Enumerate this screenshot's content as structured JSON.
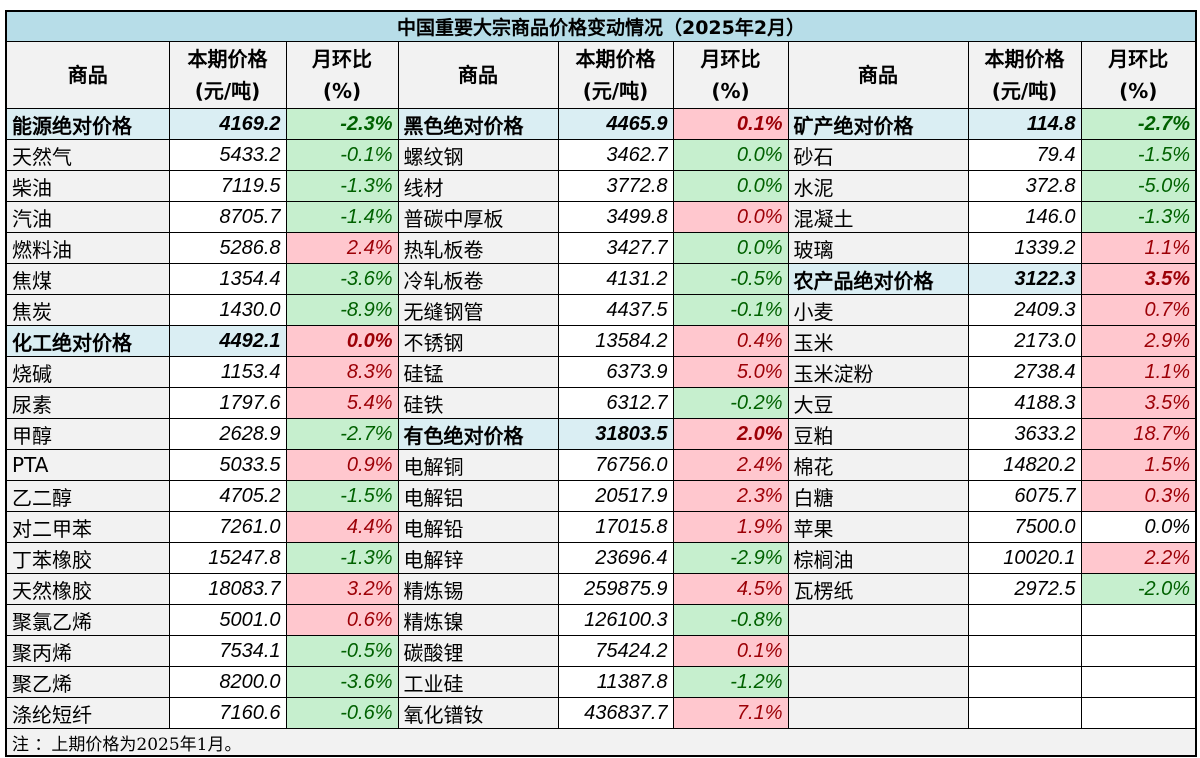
{
  "title": "中国重要大宗商品价格变动情况（2025年2月）",
  "headers": {
    "name": "商品",
    "price": "本期价格\n(元/吨)",
    "pct": "月环比\n(%)"
  },
  "colors": {
    "title_bg": "#b7dde8",
    "category_bg": "#daeef3",
    "up_bg": "#ffc7ce",
    "up_text": "#9c0006",
    "down_bg": "#c6efce",
    "down_text": "#006100"
  },
  "columns": [
    [
      [
        "能源绝对价格",
        "4169.2",
        "-2.3%",
        "g",
        true
      ],
      [
        "天然气",
        "5433.2",
        "-0.1%",
        "g"
      ],
      [
        "柴油",
        "7119.5",
        "-1.3%",
        "g"
      ],
      [
        "汽油",
        "8705.7",
        "-1.4%",
        "g"
      ],
      [
        "燃料油",
        "5286.8",
        "2.4%",
        "r"
      ],
      [
        "焦煤",
        "1354.4",
        "-3.6%",
        "g"
      ],
      [
        "焦炭",
        "1430.0",
        "-8.9%",
        "g"
      ],
      [
        "化工绝对价格",
        "4492.1",
        "0.0%",
        "r",
        true
      ],
      [
        "烧碱",
        "1153.4",
        "8.3%",
        "r"
      ],
      [
        "尿素",
        "1797.6",
        "5.4%",
        "r"
      ],
      [
        "甲醇",
        "2628.9",
        "-2.7%",
        "g"
      ],
      [
        "PTA",
        "5033.5",
        "0.9%",
        "r"
      ],
      [
        "乙二醇",
        "4705.2",
        "-1.5%",
        "g"
      ],
      [
        "对二甲苯",
        "7261.0",
        "4.4%",
        "r"
      ],
      [
        "丁苯橡胶",
        "15247.8",
        "-1.3%",
        "g"
      ],
      [
        "天然橡胶",
        "18083.7",
        "3.2%",
        "r"
      ],
      [
        "聚氯乙烯",
        "5001.0",
        "0.6%",
        "r"
      ],
      [
        "聚丙烯",
        "7534.1",
        "-0.5%",
        "g"
      ],
      [
        "聚乙烯",
        "8200.0",
        "-3.6%",
        "g"
      ],
      [
        "涤纶短纤",
        "7160.6",
        "-0.6%",
        "g"
      ]
    ],
    [
      [
        "黑色绝对价格",
        "4465.9",
        "0.1%",
        "r",
        true
      ],
      [
        "螺纹钢",
        "3462.7",
        "0.0%",
        "g"
      ],
      [
        "线材",
        "3772.8",
        "0.0%",
        "g"
      ],
      [
        "普碳中厚板",
        "3499.8",
        "0.0%",
        "r"
      ],
      [
        "热轧板卷",
        "3427.7",
        "0.0%",
        "g"
      ],
      [
        "冷轧板卷",
        "4131.2",
        "-0.5%",
        "g"
      ],
      [
        "无缝钢管",
        "4437.5",
        "-0.1%",
        "g"
      ],
      [
        "不锈钢",
        "13584.2",
        "0.4%",
        "r"
      ],
      [
        "硅锰",
        "6373.9",
        "5.0%",
        "r"
      ],
      [
        "硅铁",
        "6312.7",
        "-0.2%",
        "g"
      ],
      [
        "有色绝对价格",
        "31803.5",
        "2.0%",
        "r",
        true
      ],
      [
        "电解铜",
        "76756.0",
        "2.4%",
        "r"
      ],
      [
        "电解铝",
        "20517.9",
        "2.3%",
        "r"
      ],
      [
        "电解铅",
        "17015.8",
        "1.9%",
        "r"
      ],
      [
        "电解锌",
        "23696.4",
        "-2.9%",
        "g"
      ],
      [
        "精炼锡",
        "259875.9",
        "4.5%",
        "r"
      ],
      [
        "精炼镍",
        "126100.3",
        "-0.8%",
        "g"
      ],
      [
        "碳酸锂",
        "75424.2",
        "0.1%",
        "r"
      ],
      [
        "工业硅",
        "11387.8",
        "-1.2%",
        "g"
      ],
      [
        "氧化镨钕",
        "436837.7",
        "7.1%",
        "r"
      ]
    ],
    [
      [
        "矿产绝对价格",
        "114.8",
        "-2.7%",
        "g",
        true
      ],
      [
        "砂石",
        "79.4",
        "-1.5%",
        "g"
      ],
      [
        "水泥",
        "372.8",
        "-5.0%",
        "g"
      ],
      [
        "混凝土",
        "146.0",
        "-1.3%",
        "g"
      ],
      [
        "玻璃",
        "1339.2",
        "1.1%",
        "r"
      ],
      [
        "农产品绝对价格",
        "3122.3",
        "3.5%",
        "r",
        true
      ],
      [
        "小麦",
        "2409.3",
        "0.7%",
        "r"
      ],
      [
        "玉米",
        "2173.0",
        "2.9%",
        "r"
      ],
      [
        "玉米淀粉",
        "2738.4",
        "1.1%",
        "r"
      ],
      [
        "大豆",
        "4188.3",
        "3.5%",
        "r"
      ],
      [
        "豆粕",
        "3633.2",
        "18.7%",
        "r"
      ],
      [
        "棉花",
        "14820.2",
        "1.5%",
        "r"
      ],
      [
        "白糖",
        "6075.7",
        "0.3%",
        "r"
      ],
      [
        "苹果",
        "7500.0",
        "0.0%",
        "n"
      ],
      [
        "棕榈油",
        "10020.1",
        "2.2%",
        "r"
      ],
      [
        "瓦楞纸",
        "2972.5",
        "-2.0%",
        "g"
      ],
      [
        "",
        "",
        "",
        ""
      ],
      [
        "",
        "",
        "",
        ""
      ],
      [
        "",
        "",
        "",
        ""
      ],
      [
        "",
        "",
        "",
        ""
      ]
    ]
  ],
  "note": "注 ：上期价格为2025年1月。"
}
